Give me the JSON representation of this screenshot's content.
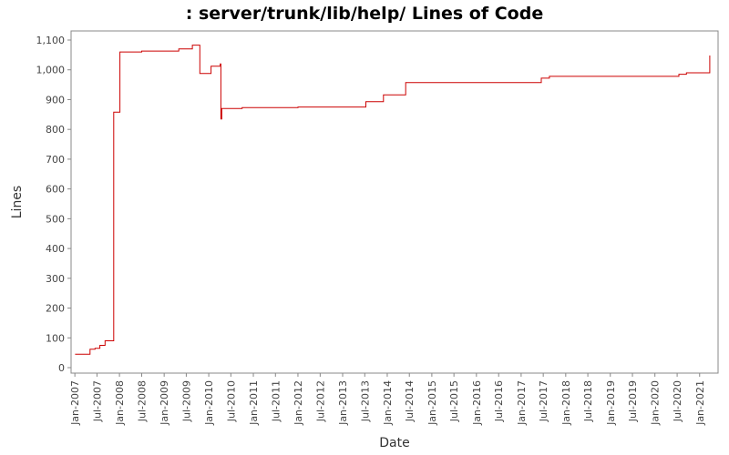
{
  "chart_data": {
    "type": "line",
    "title": ": server/trunk/lib/help/ Lines of Code",
    "xlabel": "Date",
    "ylabel": "Lines",
    "ylim": [
      0,
      1100
    ],
    "xlim": [
      "2006-12-01",
      "2021-06-01"
    ],
    "y_ticks": [
      {
        "value": 0,
        "label": "0"
      },
      {
        "value": 100,
        "label": "100"
      },
      {
        "value": 200,
        "label": "200"
      },
      {
        "value": 300,
        "label": "300"
      },
      {
        "value": 400,
        "label": "400"
      },
      {
        "value": 500,
        "label": "500"
      },
      {
        "value": 600,
        "label": "600"
      },
      {
        "value": 700,
        "label": "700"
      },
      {
        "value": 800,
        "label": "800"
      },
      {
        "value": 900,
        "label": "900"
      },
      {
        "value": 1000,
        "label": "1,000"
      },
      {
        "value": 1100,
        "label": "1,100"
      }
    ],
    "x_ticks": [
      {
        "date": "2007-01-01",
        "label": "Jan-2007"
      },
      {
        "date": "2007-07-01",
        "label": "Jul-2007"
      },
      {
        "date": "2008-01-01",
        "label": "Jan-2008"
      },
      {
        "date": "2008-07-01",
        "label": "Jul-2008"
      },
      {
        "date": "2009-01-01",
        "label": "Jan-2009"
      },
      {
        "date": "2009-07-01",
        "label": "Jul-2009"
      },
      {
        "date": "2010-01-01",
        "label": "Jan-2010"
      },
      {
        "date": "2010-07-01",
        "label": "Jul-2010"
      },
      {
        "date": "2011-01-01",
        "label": "Jan-2011"
      },
      {
        "date": "2011-07-01",
        "label": "Jul-2011"
      },
      {
        "date": "2012-01-01",
        "label": "Jan-2012"
      },
      {
        "date": "2012-07-01",
        "label": "Jul-2012"
      },
      {
        "date": "2013-01-01",
        "label": "Jan-2013"
      },
      {
        "date": "2013-07-01",
        "label": "Jul-2013"
      },
      {
        "date": "2014-01-01",
        "label": "Jan-2014"
      },
      {
        "date": "2014-07-01",
        "label": "Jul-2014"
      },
      {
        "date": "2015-01-01",
        "label": "Jan-2015"
      },
      {
        "date": "2015-07-01",
        "label": "Jul-2015"
      },
      {
        "date": "2016-01-01",
        "label": "Jan-2016"
      },
      {
        "date": "2016-07-01",
        "label": "Jul-2016"
      },
      {
        "date": "2017-01-01",
        "label": "Jan-2017"
      },
      {
        "date": "2017-07-01",
        "label": "Jul-2017"
      },
      {
        "date": "2018-01-01",
        "label": "Jan-2018"
      },
      {
        "date": "2018-07-01",
        "label": "Jul-2018"
      },
      {
        "date": "2019-01-01",
        "label": "Jan-2019"
      },
      {
        "date": "2019-07-01",
        "label": "Jul-2019"
      },
      {
        "date": "2020-01-01",
        "label": "Jan-2020"
      },
      {
        "date": "2020-07-01",
        "label": "Jul-2020"
      },
      {
        "date": "2021-01-01",
        "label": "Jan-2021"
      }
    ],
    "step": "post",
    "grid": false,
    "line_color": "#cc0000",
    "points": [
      {
        "x": "2007-01-03",
        "y": 45
      },
      {
        "x": "2007-05-05",
        "y": 62
      },
      {
        "x": "2007-06-15",
        "y": 65
      },
      {
        "x": "2007-07-25",
        "y": 75
      },
      {
        "x": "2007-09-05",
        "y": 90
      },
      {
        "x": "2007-11-15",
        "y": 858
      },
      {
        "x": "2008-01-05",
        "y": 1060
      },
      {
        "x": "2008-07-01",
        "y": 1063
      },
      {
        "x": "2009-05-01",
        "y": 1070
      },
      {
        "x": "2009-08-20",
        "y": 1083
      },
      {
        "x": "2009-10-20",
        "y": 988
      },
      {
        "x": "2010-01-20",
        "y": 1012
      },
      {
        "x": "2010-04-05",
        "y": 1020
      },
      {
        "x": "2010-04-10",
        "y": 835
      },
      {
        "x": "2010-04-18",
        "y": 870
      },
      {
        "x": "2010-10-01",
        "y": 873
      },
      {
        "x": "2012-01-01",
        "y": 875
      },
      {
        "x": "2013-07-10",
        "y": 893
      },
      {
        "x": "2013-12-01",
        "y": 916
      },
      {
        "x": "2014-06-01",
        "y": 957
      },
      {
        "x": "2017-06-15",
        "y": 972
      },
      {
        "x": "2017-08-20",
        "y": 978
      },
      {
        "x": "2020-07-15",
        "y": 985
      },
      {
        "x": "2020-09-15",
        "y": 990
      },
      {
        "x": "2021-03-25",
        "y": 1048
      }
    ]
  }
}
